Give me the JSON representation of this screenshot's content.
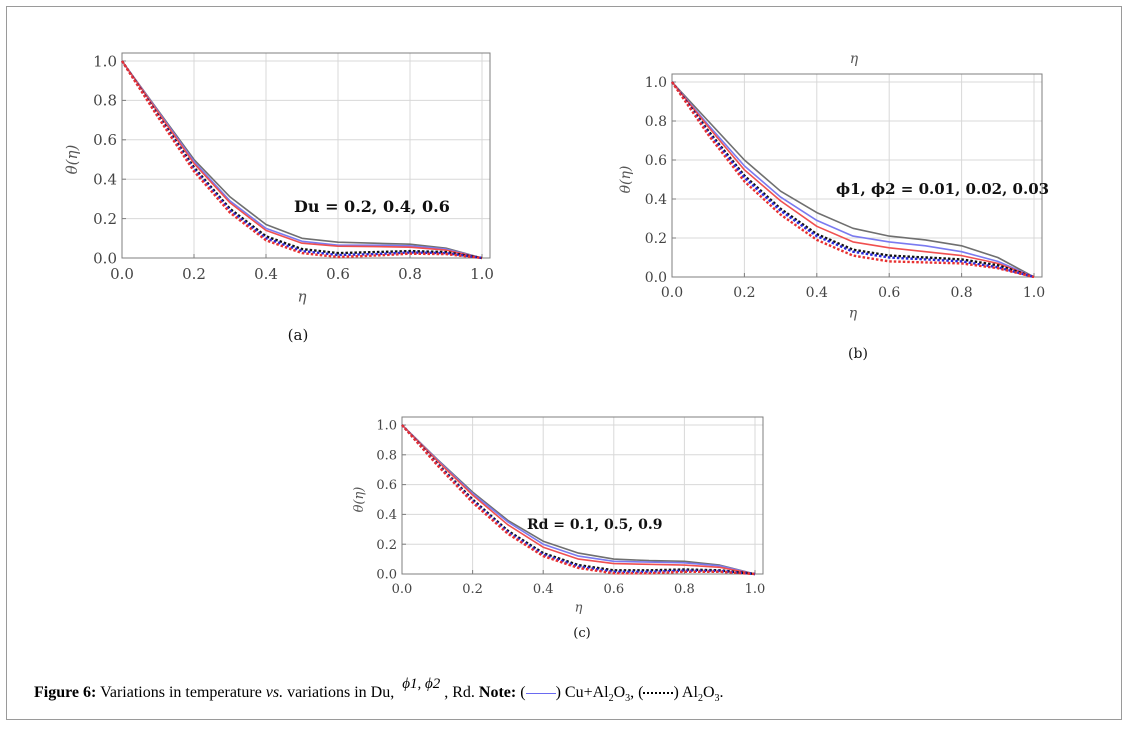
{
  "caption": {
    "fig_label": "Figure 6:",
    "text_a": "Variations in temperature",
    "vs": "vs.",
    "text_b": "variations in Du,",
    "phi_symbols": "ϕ1, ϕ2",
    "text_c": ", Rd.",
    "note_label": "Note:",
    "paren_open": "(",
    "legend1_a": ") Cu+Al",
    "legend1_sub2": "2",
    "legend1_b": "O",
    "legend1_sub3": "3",
    "mid": ", (",
    "legend2_a": ") Al",
    "legend2_sub2": "2",
    "legend2_b": "O",
    "legend2_sub3": "3",
    "end": "."
  },
  "colors": {
    "gray": "#6f6f6f",
    "blue": "#7a7af0",
    "red": "#f05050",
    "black_dot": "#111111",
    "blue_dot": "#2a2ad8",
    "red_dot": "#e83030",
    "grid": "#d8d8d8",
    "frame": "#7f7f7f"
  },
  "chart_data": [
    {
      "id": "a",
      "type": "line",
      "subcaption": "(a)",
      "xlabel": "η",
      "ylabel": "θ(η)",
      "top_label": "",
      "annotation": "Du = 0.2, 0.4, 0.6",
      "xlim": [
        0,
        1
      ],
      "ylim": [
        0,
        1
      ],
      "xticks": [
        "0.0",
        "0.2",
        "0.4",
        "0.6",
        "0.8",
        "1.0"
      ],
      "yticks": [
        "0.0",
        "0.2",
        "0.4",
        "0.6",
        "0.8",
        "1.0"
      ],
      "x": [
        0,
        0.1,
        0.2,
        0.3,
        0.4,
        0.5,
        0.6,
        0.7,
        0.8,
        0.9,
        1.0
      ],
      "series": [
        {
          "style": "solid",
          "color": "gray",
          "values": [
            1.0,
            0.75,
            0.5,
            0.31,
            0.17,
            0.1,
            0.08,
            0.075,
            0.07,
            0.05,
            0.0
          ]
        },
        {
          "style": "solid",
          "color": "blue",
          "values": [
            1.0,
            0.745,
            0.49,
            0.29,
            0.15,
            0.085,
            0.065,
            0.065,
            0.062,
            0.045,
            0.0
          ]
        },
        {
          "style": "solid",
          "color": "red",
          "values": [
            1.0,
            0.74,
            0.48,
            0.28,
            0.14,
            0.075,
            0.06,
            0.058,
            0.055,
            0.04,
            0.0
          ]
        },
        {
          "style": "dotted",
          "color": "black_dot",
          "values": [
            1.0,
            0.725,
            0.46,
            0.25,
            0.11,
            0.045,
            0.025,
            0.03,
            0.035,
            0.03,
            0.0
          ]
        },
        {
          "style": "dotted",
          "color": "blue_dot",
          "values": [
            1.0,
            0.72,
            0.45,
            0.24,
            0.1,
            0.035,
            0.015,
            0.02,
            0.028,
            0.025,
            0.0
          ]
        },
        {
          "style": "dotted",
          "color": "red_dot",
          "values": [
            1.0,
            0.715,
            0.44,
            0.23,
            0.09,
            0.025,
            0.005,
            0.012,
            0.022,
            0.02,
            0.0
          ]
        }
      ]
    },
    {
      "id": "b",
      "type": "line",
      "subcaption": "(b)",
      "xlabel": "η",
      "ylabel": "θ(η)",
      "top_label": "η",
      "annotation": "ϕ1, ϕ2 = 0.01, 0.02, 0.03",
      "xlim": [
        0,
        1
      ],
      "ylim": [
        0,
        1
      ],
      "xticks": [
        "0.0",
        "0.2",
        "0.4",
        "0.6",
        "0.8",
        "1.0"
      ],
      "yticks": [
        "0.0",
        "0.2",
        "0.4",
        "0.6",
        "0.8",
        "1.0"
      ],
      "x": [
        0,
        0.1,
        0.2,
        0.3,
        0.4,
        0.5,
        0.6,
        0.7,
        0.8,
        0.9,
        1.0
      ],
      "series": [
        {
          "style": "solid",
          "color": "gray",
          "values": [
            1.0,
            0.8,
            0.6,
            0.44,
            0.33,
            0.25,
            0.21,
            0.19,
            0.16,
            0.1,
            0.0
          ]
        },
        {
          "style": "solid",
          "color": "blue",
          "values": [
            1.0,
            0.78,
            0.57,
            0.41,
            0.29,
            0.21,
            0.18,
            0.16,
            0.13,
            0.08,
            0.0
          ]
        },
        {
          "style": "solid",
          "color": "red",
          "values": [
            1.0,
            0.77,
            0.55,
            0.39,
            0.26,
            0.18,
            0.15,
            0.13,
            0.11,
            0.07,
            0.0
          ]
        },
        {
          "style": "dotted",
          "color": "black_dot",
          "values": [
            1.0,
            0.75,
            0.52,
            0.35,
            0.22,
            0.14,
            0.11,
            0.1,
            0.09,
            0.06,
            0.0
          ]
        },
        {
          "style": "dotted",
          "color": "blue_dot",
          "values": [
            1.0,
            0.74,
            0.51,
            0.34,
            0.21,
            0.13,
            0.1,
            0.09,
            0.08,
            0.05,
            0.0
          ]
        },
        {
          "style": "dotted",
          "color": "red_dot",
          "values": [
            1.0,
            0.73,
            0.49,
            0.32,
            0.19,
            0.11,
            0.08,
            0.075,
            0.07,
            0.045,
            0.0
          ]
        }
      ]
    },
    {
      "id": "c",
      "type": "line",
      "subcaption": "(c)",
      "xlabel": "η",
      "ylabel": "θ(η)",
      "top_label": "",
      "annotation": "Rd = 0.1, 0.5, 0.9",
      "xlim": [
        0,
        1
      ],
      "ylim": [
        0,
        1
      ],
      "xticks": [
        "0.0",
        "0.2",
        "0.4",
        "0.6",
        "0.8",
        "1.0"
      ],
      "yticks": [
        "0.0",
        "0.2",
        "0.4",
        "0.6",
        "0.8",
        "1.0"
      ],
      "x": [
        0,
        0.1,
        0.2,
        0.3,
        0.4,
        0.5,
        0.6,
        0.7,
        0.8,
        0.9,
        1.0
      ],
      "series": [
        {
          "style": "solid",
          "color": "gray",
          "values": [
            1.0,
            0.77,
            0.55,
            0.36,
            0.22,
            0.14,
            0.1,
            0.09,
            0.085,
            0.06,
            0.0
          ]
        },
        {
          "style": "solid",
          "color": "blue",
          "values": [
            1.0,
            0.765,
            0.54,
            0.35,
            0.2,
            0.12,
            0.085,
            0.08,
            0.075,
            0.055,
            0.0
          ]
        },
        {
          "style": "solid",
          "color": "red",
          "values": [
            1.0,
            0.76,
            0.53,
            0.33,
            0.18,
            0.1,
            0.07,
            0.065,
            0.06,
            0.045,
            0.0
          ]
        },
        {
          "style": "dotted",
          "color": "black_dot",
          "values": [
            1.0,
            0.74,
            0.5,
            0.29,
            0.14,
            0.06,
            0.025,
            0.025,
            0.03,
            0.025,
            0.0
          ]
        },
        {
          "style": "dotted",
          "color": "blue_dot",
          "values": [
            1.0,
            0.735,
            0.49,
            0.28,
            0.13,
            0.05,
            0.015,
            0.015,
            0.022,
            0.02,
            0.0
          ]
        },
        {
          "style": "dotted",
          "color": "red_dot",
          "values": [
            1.0,
            0.73,
            0.48,
            0.27,
            0.12,
            0.04,
            0.005,
            0.005,
            0.015,
            0.015,
            0.0
          ]
        }
      ]
    }
  ]
}
